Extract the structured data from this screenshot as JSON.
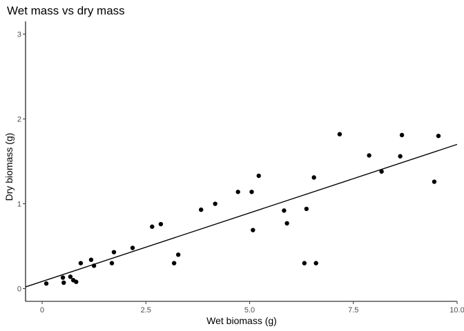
{
  "chart_data": {
    "type": "scatter",
    "title": "Wet mass vs dry mass",
    "xlabel": "Wet biomass (g)",
    "ylabel": "Dry biomass (g)",
    "xlim": [
      -0.4,
      10.0
    ],
    "ylim": [
      -0.15,
      3.15
    ],
    "x_ticks": [
      0,
      2.5,
      5.0,
      7.5,
      10.0
    ],
    "x_tick_labels": [
      "0",
      "2.5",
      "5.0",
      "7.5",
      "10.0"
    ],
    "y_ticks": [
      0,
      1,
      2,
      3
    ],
    "y_tick_labels": [
      "0",
      "1",
      "2",
      "3"
    ],
    "grid": false,
    "point_color": "#000000",
    "points": [
      {
        "x": 0.1,
        "y": 0.06
      },
      {
        "x": 0.5,
        "y": 0.13
      },
      {
        "x": 0.52,
        "y": 0.07
      },
      {
        "x": 0.68,
        "y": 0.14
      },
      {
        "x": 0.75,
        "y": 0.1
      },
      {
        "x": 0.82,
        "y": 0.08
      },
      {
        "x": 0.93,
        "y": 0.3
      },
      {
        "x": 1.18,
        "y": 0.34
      },
      {
        "x": 1.25,
        "y": 0.27
      },
      {
        "x": 1.68,
        "y": 0.3
      },
      {
        "x": 1.73,
        "y": 0.43
      },
      {
        "x": 2.18,
        "y": 0.48
      },
      {
        "x": 2.65,
        "y": 0.73
      },
      {
        "x": 2.86,
        "y": 0.76
      },
      {
        "x": 3.18,
        "y": 0.3
      },
      {
        "x": 3.28,
        "y": 0.4
      },
      {
        "x": 3.83,
        "y": 0.93
      },
      {
        "x": 4.17,
        "y": 1.0
      },
      {
        "x": 4.72,
        "y": 1.14
      },
      {
        "x": 5.05,
        "y": 1.14
      },
      {
        "x": 5.08,
        "y": 0.69
      },
      {
        "x": 5.22,
        "y": 1.33
      },
      {
        "x": 5.83,
        "y": 0.92
      },
      {
        "x": 5.9,
        "y": 0.77
      },
      {
        "x": 6.32,
        "y": 0.3
      },
      {
        "x": 6.37,
        "y": 0.94
      },
      {
        "x": 6.55,
        "y": 1.31
      },
      {
        "x": 6.6,
        "y": 0.3
      },
      {
        "x": 7.17,
        "y": 1.82
      },
      {
        "x": 7.88,
        "y": 1.57
      },
      {
        "x": 8.18,
        "y": 1.38
      },
      {
        "x": 8.63,
        "y": 1.56
      },
      {
        "x": 8.67,
        "y": 1.81
      },
      {
        "x": 9.45,
        "y": 1.26
      },
      {
        "x": 9.55,
        "y": 1.8
      }
    ],
    "fit_line": {
      "x": [
        -0.4,
        10.0
      ],
      "y": [
        0.02,
        1.7
      ]
    }
  }
}
